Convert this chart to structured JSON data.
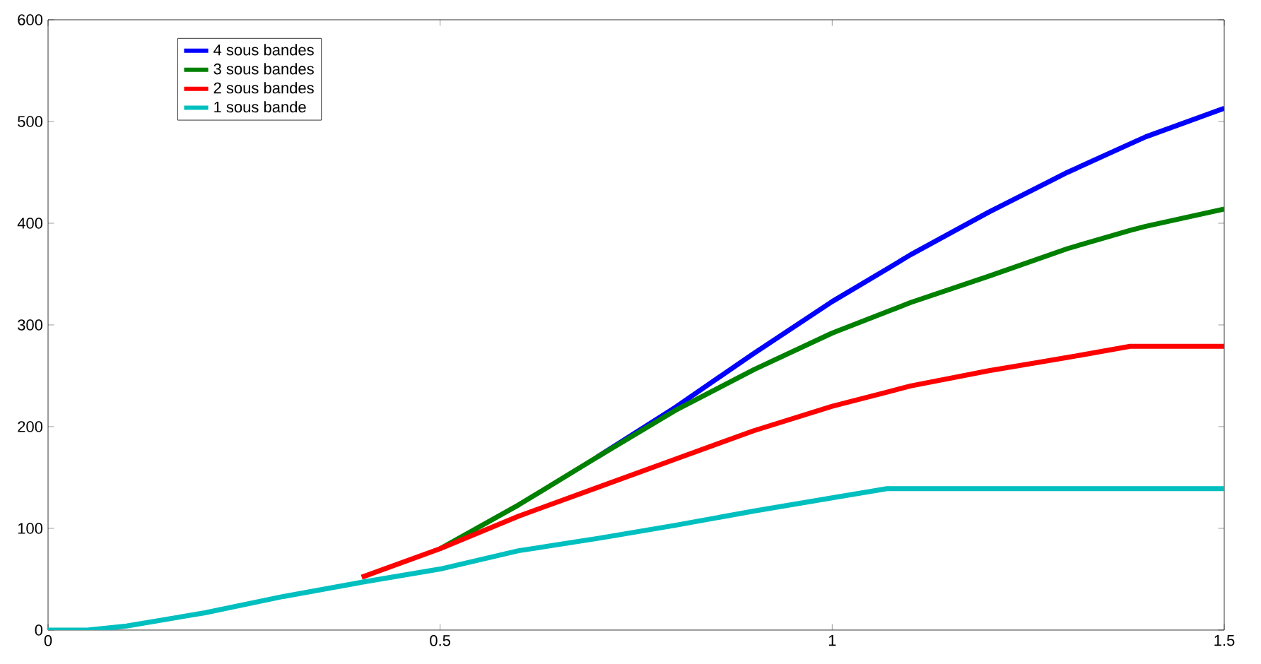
{
  "chart_data": {
    "type": "line",
    "xlim": [
      0,
      1.5
    ],
    "ylim": [
      0,
      600
    ],
    "xticks": [
      0,
      0.5,
      1,
      1.5
    ],
    "yticks": [
      0,
      100,
      200,
      300,
      400,
      500,
      600
    ],
    "legend": "top left",
    "grid": false,
    "line_style": "solid",
    "marker": "none",
    "x": [
      0,
      0.05,
      0.1,
      0.2,
      0.3,
      0.4,
      0.5,
      0.6,
      0.7,
      0.8,
      0.9,
      1.0,
      1.07,
      1.1,
      1.2,
      1.3,
      1.38,
      1.4,
      1.5
    ],
    "series": [
      {
        "name": "4 sous bandes",
        "color": "#0000ff",
        "values": [
          null,
          null,
          null,
          null,
          null,
          null,
          null,
          null,
          170,
          219,
          272,
          323,
          355,
          369,
          411,
          450,
          478,
          485,
          513
        ]
      },
      {
        "name": "3 sous bandes",
        "color": "#008000",
        "values": [
          null,
          null,
          null,
          null,
          null,
          null,
          80,
          123,
          170,
          216,
          256,
          292,
          313,
          322,
          348,
          375,
          393,
          397,
          414
        ]
      },
      {
        "name": "2 sous bandes",
        "color": "#ff0000",
        "values": [
          null,
          null,
          null,
          null,
          null,
          52,
          80,
          112,
          140,
          168,
          196,
          220,
          234,
          240,
          255,
          268,
          279,
          279,
          279
        ]
      },
      {
        "name": "1 sous bande",
        "color": "#00bfbf",
        "values": [
          0,
          0,
          4,
          17,
          33,
          47,
          60,
          78,
          90,
          103,
          117,
          130,
          139,
          139,
          139,
          139,
          139,
          139,
          139
        ]
      }
    ]
  }
}
